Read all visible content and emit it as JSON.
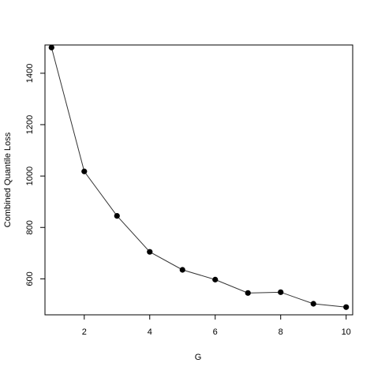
{
  "chart_data": {
    "type": "line",
    "title": "",
    "xlabel": "G",
    "ylabel": "Combined Quantile Loss",
    "x": [
      1,
      2,
      3,
      4,
      5,
      6,
      7,
      8,
      9,
      10
    ],
    "series": [
      {
        "values": [
          1500,
          1018,
          845,
          705,
          635,
          597,
          545,
          548,
          503,
          490
        ]
      }
    ],
    "xlim": [
      0.8,
      10.2
    ],
    "ylim": [
      460,
      1510
    ],
    "xticks": [
      2,
      4,
      6,
      8,
      10
    ],
    "xtick_labels": [
      "2",
      "4",
      "6",
      "8",
      "10"
    ],
    "yticks": [
      600,
      800,
      1000,
      1200,
      1400
    ],
    "ytick_labels": [
      "600",
      "800",
      "1000",
      "1200",
      "1400"
    ],
    "grid": false,
    "legend": "none",
    "line_color": "#333333",
    "marker_color": "#000000"
  }
}
